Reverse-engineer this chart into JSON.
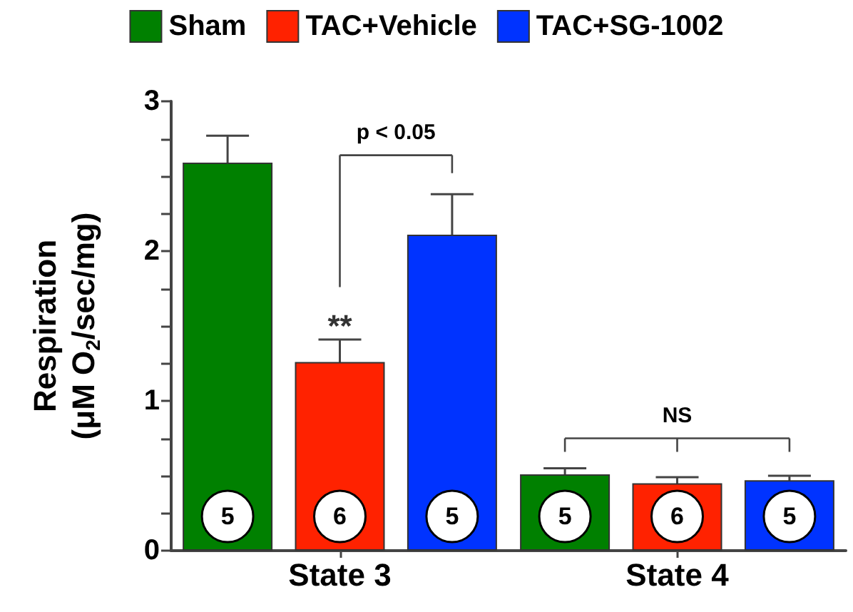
{
  "chart_data": {
    "type": "bar",
    "ylabel": "Respiration\n(μM O$_{2}$/sec/mg)",
    "categories": [
      "State 3",
      "State 4"
    ],
    "series": [
      {
        "name": "Sham",
        "color": "#008000",
        "values": [
          2.59,
          0.51
        ],
        "errors": [
          0.18,
          0.04
        ]
      },
      {
        "name": "TAC+Vehicle",
        "color": "#ff2200",
        "values": [
          1.26,
          0.45
        ],
        "errors": [
          0.15,
          0.04
        ]
      },
      {
        "name": "TAC+SG-1002",
        "color": "#0033ff",
        "values": [
          2.11,
          0.47
        ],
        "errors": [
          0.27,
          0.03
        ]
      }
    ],
    "ylim": [
      0,
      3
    ],
    "yticks": [
      0,
      {
        "value": 0.25,
        "label": null
      },
      {
        "value": 0.5,
        "label": null
      },
      {
        "value": 0.75,
        "label": null
      },
      1,
      {
        "value": 1.25,
        "label": null
      },
      {
        "value": 1.5,
        "label": null
      },
      {
        "value": 1.75,
        "label": null
      },
      2,
      {
        "value": 2.25,
        "label": null
      },
      {
        "value": 2.5,
        "label": null
      },
      {
        "value": 2.75,
        "label": null
      },
      3
    ],
    "annotations": [
      "**",
      "p < 0.05",
      "NS",
      "5",
      "5",
      "6",
      "6",
      "5",
      "5"
    ],
    "legend": "top",
    "grid": false
  }
}
